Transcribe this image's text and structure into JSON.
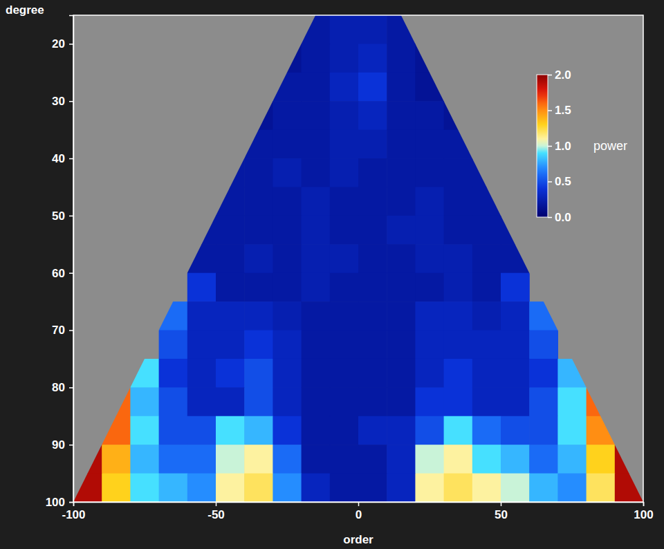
{
  "chart_data": {
    "type": "heatmap",
    "x_label": "order",
    "y_label": "degree",
    "xlim": [
      -100,
      100
    ],
    "ylim": [
      15,
      100
    ],
    "xticks": [
      -100,
      -50,
      0,
      50,
      100
    ],
    "yticks": [
      20,
      30,
      40,
      50,
      60,
      70,
      80,
      90,
      100
    ],
    "x_bins": [
      -100,
      -90,
      -80,
      -70,
      -60,
      -50,
      -40,
      -30,
      -20,
      -10,
      0,
      10,
      20,
      30,
      40,
      50,
      60,
      70,
      80,
      90,
      100
    ],
    "y_bins": [
      15,
      20,
      25,
      30,
      35,
      40,
      45,
      50,
      55,
      60,
      65,
      70,
      75,
      80,
      85,
      90,
      95,
      100
    ],
    "z": [
      [
        null,
        null,
        null,
        null,
        null,
        null,
        null,
        null,
        0.2,
        0.25,
        0.25,
        0.2,
        null,
        null,
        null,
        null,
        null,
        null,
        null,
        null
      ],
      [
        null,
        null,
        null,
        null,
        null,
        null,
        null,
        0.15,
        0.2,
        0.25,
        0.3,
        0.2,
        0.15,
        null,
        null,
        null,
        null,
        null,
        null,
        null
      ],
      [
        null,
        null,
        null,
        null,
        null,
        null,
        null,
        0.2,
        0.2,
        0.3,
        0.4,
        0.2,
        0.15,
        null,
        null,
        null,
        null,
        null,
        null,
        null
      ],
      [
        null,
        null,
        null,
        null,
        null,
        null,
        0.15,
        0.2,
        0.2,
        0.25,
        0.3,
        0.2,
        0.2,
        0.15,
        null,
        null,
        null,
        null,
        null,
        null
      ],
      [
        null,
        null,
        null,
        null,
        null,
        null,
        0.2,
        0.2,
        0.2,
        0.25,
        0.25,
        0.2,
        0.2,
        0.2,
        null,
        null,
        null,
        null,
        null,
        null
      ],
      [
        null,
        null,
        null,
        null,
        null,
        0.2,
        0.2,
        0.25,
        0.2,
        0.25,
        0.2,
        0.2,
        0.2,
        0.2,
        0.2,
        null,
        null,
        null,
        null,
        null
      ],
      [
        null,
        null,
        null,
        null,
        null,
        0.2,
        0.2,
        0.2,
        0.25,
        0.2,
        0.2,
        0.2,
        0.25,
        0.2,
        0.2,
        null,
        null,
        null,
        null,
        null
      ],
      [
        null,
        null,
        null,
        null,
        0.2,
        0.2,
        0.2,
        0.2,
        0.25,
        0.2,
        0.2,
        0.25,
        0.25,
        0.2,
        0.2,
        0.2,
        null,
        null,
        null,
        null
      ],
      [
        null,
        null,
        null,
        null,
        0.2,
        0.2,
        0.25,
        0.2,
        0.25,
        0.25,
        0.2,
        0.2,
        0.25,
        0.25,
        0.2,
        0.2,
        null,
        null,
        null,
        null
      ],
      [
        null,
        null,
        null,
        null,
        0.4,
        0.2,
        0.2,
        0.2,
        0.25,
        0.2,
        0.2,
        0.2,
        0.2,
        0.25,
        0.2,
        0.4,
        null,
        null,
        null,
        null
      ],
      [
        null,
        null,
        null,
        0.6,
        0.3,
        0.3,
        0.3,
        0.25,
        0.2,
        0.2,
        0.2,
        0.2,
        0.3,
        0.3,
        0.25,
        0.3,
        0.6,
        null,
        null,
        null
      ],
      [
        null,
        null,
        null,
        0.5,
        0.3,
        0.3,
        0.4,
        0.3,
        0.2,
        0.2,
        0.2,
        0.2,
        0.3,
        0.3,
        0.3,
        0.3,
        0.5,
        null,
        null,
        null
      ],
      [
        null,
        null,
        0.9,
        0.4,
        0.3,
        0.4,
        0.5,
        0.3,
        0.2,
        0.2,
        0.2,
        0.2,
        0.3,
        0.4,
        0.3,
        0.3,
        0.4,
        0.8,
        null,
        null
      ],
      [
        null,
        1.6,
        0.8,
        0.5,
        0.3,
        0.3,
        0.5,
        0.3,
        0.2,
        0.2,
        0.2,
        0.2,
        0.4,
        0.4,
        0.3,
        0.3,
        0.5,
        0.9,
        1.6,
        null
      ],
      [
        null,
        1.6,
        0.9,
        0.5,
        0.5,
        0.9,
        0.8,
        0.4,
        0.2,
        0.2,
        0.3,
        0.3,
        0.5,
        0.9,
        0.6,
        0.5,
        0.5,
        0.9,
        1.5,
        null
      ],
      [
        1.9,
        1.4,
        0.8,
        0.6,
        0.6,
        1.0,
        1.1,
        0.6,
        0.2,
        0.2,
        0.2,
        0.3,
        1.0,
        1.1,
        0.9,
        0.8,
        0.6,
        0.8,
        1.3,
        1.9
      ],
      [
        1.9,
        1.3,
        0.9,
        0.8,
        0.7,
        1.1,
        1.2,
        0.7,
        0.3,
        0.2,
        0.2,
        0.3,
        1.1,
        1.2,
        1.1,
        1.0,
        0.8,
        0.7,
        1.2,
        1.9
      ]
    ],
    "colorbar_range": [
      0,
      2
    ],
    "colorbar_ticks": [
      {
        "value": 0,
        "label": "0.0"
      },
      {
        "value": 0.5,
        "label": "0.5"
      },
      {
        "value": 1,
        "label": "1.0"
      },
      {
        "value": 1.5,
        "label": "1.5"
      },
      {
        "value": 2,
        "label": "2.0"
      }
    ],
    "colorbar_label": "power"
  }
}
